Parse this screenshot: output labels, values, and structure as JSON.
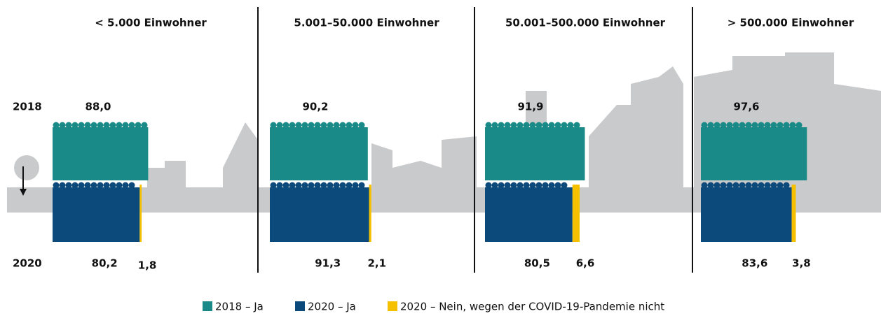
{
  "chart_data": {
    "type": "pictogram-bar",
    "categories": [
      "< 5.000 Einwohner",
      "5.001–50.000 Einwohner",
      "50.001–500.000 Einwohner",
      "> 500.000 Einwohner"
    ],
    "rows": [
      "2018",
      "2020"
    ],
    "series": [
      {
        "name": "2018 – Ja",
        "color": "#1a8a88",
        "values": [
          88.0,
          90.2,
          91.9,
          97.6
        ],
        "value_labels": [
          "88,0",
          "90,2",
          "91,9",
          "97,6"
        ]
      },
      {
        "name": "2020 – Ja",
        "color": "#0d4a7c",
        "values": [
          80.2,
          91.3,
          80.5,
          83.6
        ],
        "value_labels": [
          "80,2",
          "91,3",
          "80,5",
          "83,6"
        ]
      },
      {
        "name": "2020 – Nein, wegen der COVID-19-Pandemie nicht",
        "color": "#f5c000",
        "values": [
          1.8,
          2.1,
          6.6,
          3.8
        ],
        "value_labels": [
          "1,8",
          "2,1",
          "6,6",
          "3,8"
        ]
      }
    ]
  }
}
